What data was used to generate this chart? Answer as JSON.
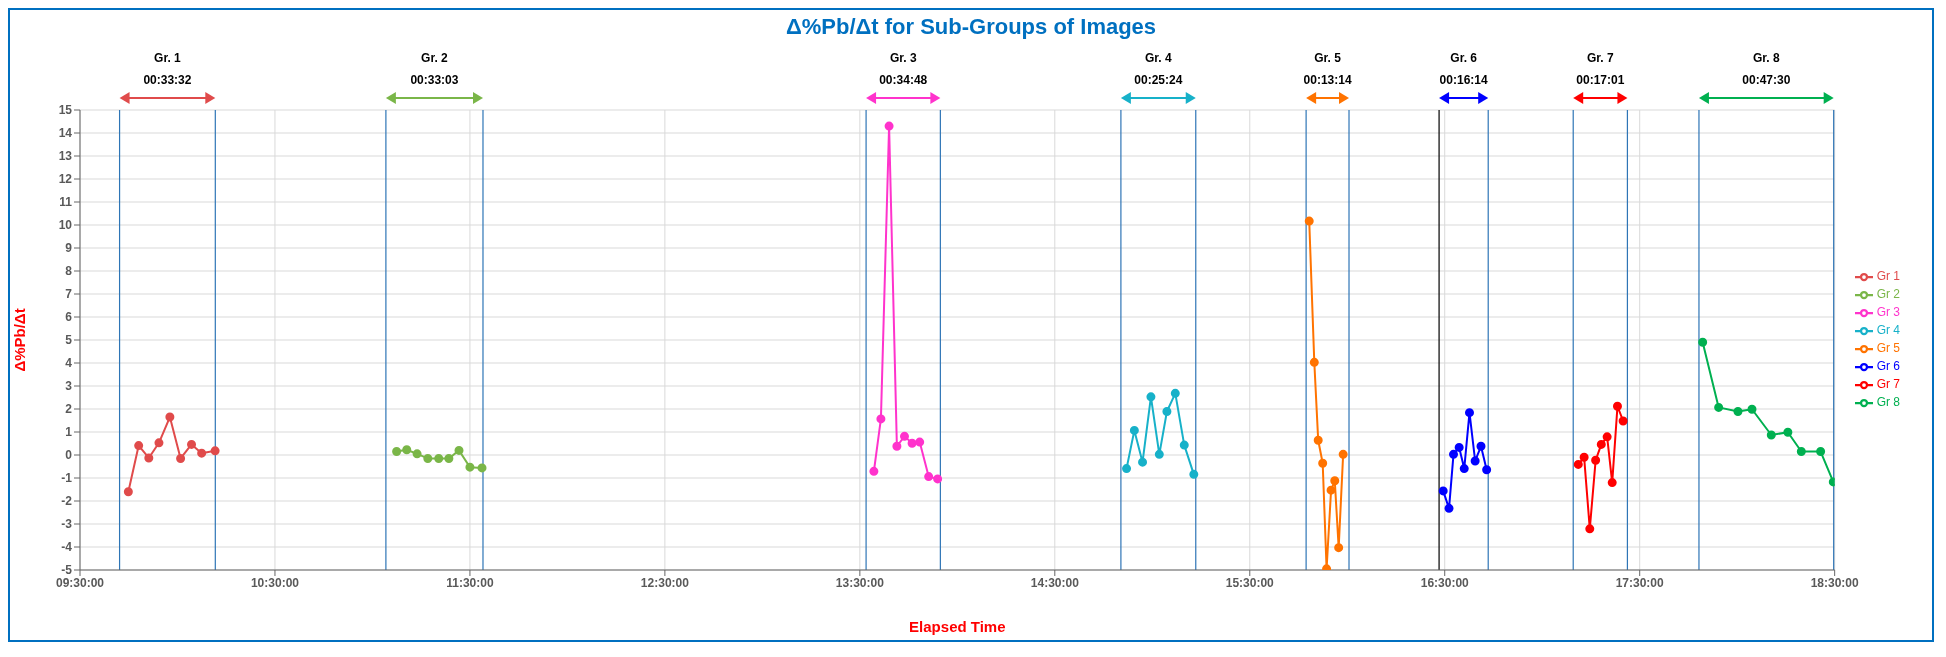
{
  "chart_data": {
    "type": "line",
    "title": "Δ%Pb/Δt for Sub-Groups of Images",
    "xlabel": "Elapsed Time",
    "ylabel": "Δ%Pb/Δt",
    "xlim": [
      9.5,
      18.5
    ],
    "xticks": [
      {
        "value": 9.5,
        "label": "09:30:00"
      },
      {
        "value": 10.5,
        "label": "10:30:00"
      },
      {
        "value": 11.5,
        "label": "11:30:00"
      },
      {
        "value": 12.5,
        "label": "12:30:00"
      },
      {
        "value": 13.5,
        "label": "13:30:00"
      },
      {
        "value": 14.5,
        "label": "14:30:00"
      },
      {
        "value": 15.5,
        "label": "15:30:00"
      },
      {
        "value": 16.5,
        "label": "16:30:00"
      },
      {
        "value": 17.5,
        "label": "17:30:00"
      },
      {
        "value": 18.5,
        "label": "18:30:00"
      }
    ],
    "ylim": [
      -5,
      15
    ],
    "yticks": [
      -5,
      -4,
      -3,
      -2,
      -1,
      0,
      1,
      2,
      3,
      4,
      5,
      6,
      7,
      8,
      9,
      10,
      11,
      12,
      13,
      14,
      15
    ],
    "grid": true,
    "legend": "right",
    "marker": "circle",
    "series": [
      {
        "name": "Gr 1",
        "color": "#e04b4b",
        "x": [
          9.748,
          9.801,
          9.853,
          9.905,
          9.961,
          10.016,
          10.072,
          10.124,
          10.193
        ],
        "values": [
          -1.6,
          0.41,
          -0.13,
          0.53,
          1.65,
          -0.15,
          0.46,
          0.08,
          0.18
        ]
      },
      {
        "name": "Gr 2",
        "color": "#7ab648",
        "x": [
          11.124,
          11.176,
          11.229,
          11.284,
          11.34,
          11.392,
          11.444,
          11.5,
          11.562
        ],
        "values": [
          0.15,
          0.23,
          0.05,
          -0.15,
          -0.15,
          -0.15,
          0.2,
          -0.53,
          -0.56
        ]
      },
      {
        "name": "Gr 3",
        "color": "#ff33cc",
        "x": [
          13.572,
          13.608,
          13.65,
          13.69,
          13.729,
          13.768,
          13.807,
          13.853,
          13.899
        ],
        "values": [
          -0.71,
          1.57,
          14.3,
          0.38,
          0.81,
          0.51,
          0.56,
          -0.94,
          -1.04
        ]
      },
      {
        "name": "Gr 4",
        "color": "#17b1c9",
        "x": [
          14.868,
          14.908,
          14.95,
          14.993,
          15.036,
          15.075,
          15.118,
          15.164,
          15.213
        ],
        "values": [
          -0.59,
          1.07,
          -0.31,
          2.53,
          0.03,
          1.89,
          2.68,
          0.43,
          -0.84
        ]
      },
      {
        "name": "Gr 5",
        "color": "#ff7300",
        "x": [
          15.805,
          15.831,
          15.851,
          15.874,
          15.894,
          15.917,
          15.936,
          15.956,
          15.979
        ],
        "values": [
          10.17,
          4.03,
          0.64,
          -0.36,
          -4.95,
          -1.53,
          -1.12,
          -4.03,
          0.03
        ]
      },
      {
        "name": "Gr 6",
        "color": "#0000ff",
        "x": [
          16.492,
          16.522,
          16.545,
          16.574,
          16.6,
          16.627,
          16.656,
          16.686,
          16.715
        ],
        "values": [
          -1.56,
          -2.32,
          0.03,
          0.33,
          -0.59,
          1.84,
          -0.26,
          0.38,
          -0.64
        ]
      },
      {
        "name": "Gr 7",
        "color": "#ff0000",
        "x": [
          17.185,
          17.215,
          17.244,
          17.274,
          17.303,
          17.333,
          17.359,
          17.386,
          17.415
        ],
        "values": [
          -0.41,
          -0.1,
          -3.21,
          -0.23,
          0.46,
          0.79,
          -1.2,
          2.12,
          1.48
        ]
      },
      {
        "name": "Gr 8",
        "color": "#00b050",
        "x": [
          17.823,
          17.905,
          18.004,
          18.076,
          18.175,
          18.26,
          18.329,
          18.428,
          18.493
        ],
        "values": [
          4.9,
          2.07,
          1.89,
          1.99,
          0.87,
          0.99,
          0.15,
          0.15,
          -1.17
        ]
      }
    ],
    "ref_lines": [
      {
        "axis": "x",
        "value": 9.703,
        "color": "#2e75b6"
      },
      {
        "axis": "x",
        "value": 10.194,
        "color": "#2e75b6"
      },
      {
        "axis": "x",
        "value": 11.069,
        "color": "#2e75b6"
      },
      {
        "axis": "x",
        "value": 11.567,
        "color": "#2e75b6"
      },
      {
        "axis": "x",
        "value": 13.532,
        "color": "#2e75b6"
      },
      {
        "axis": "x",
        "value": 13.913,
        "color": "#2e75b6"
      },
      {
        "axis": "x",
        "value": 14.839,
        "color": "#2e75b6"
      },
      {
        "axis": "x",
        "value": 15.223,
        "color": "#2e75b6"
      },
      {
        "axis": "x",
        "value": 15.789,
        "color": "#2e75b6"
      },
      {
        "axis": "x",
        "value": 16.009,
        "color": "#2e75b6"
      },
      {
        "axis": "x",
        "value": 16.471,
        "color": "#000000"
      },
      {
        "axis": "x",
        "value": 16.723,
        "color": "#2e75b6"
      },
      {
        "axis": "x",
        "value": 17.159,
        "color": "#2e75b6"
      },
      {
        "axis": "x",
        "value": 17.437,
        "color": "#2e75b6"
      },
      {
        "axis": "x",
        "value": 17.804,
        "color": "#2e75b6"
      },
      {
        "axis": "x",
        "value": 18.495,
        "color": "#2e75b6"
      }
    ],
    "annotations": [
      "Gr. 1",
      "00:33:32",
      "Gr. 2",
      "00:33:03",
      "Gr. 3",
      "00:34:48",
      "Gr. 4",
      "00:25:24",
      "Gr. 5",
      "00:13:14",
      "Gr. 6",
      "00:16:14",
      "Gr. 7",
      "00:17:01",
      "Gr. 8",
      "00:47:30"
    ]
  }
}
